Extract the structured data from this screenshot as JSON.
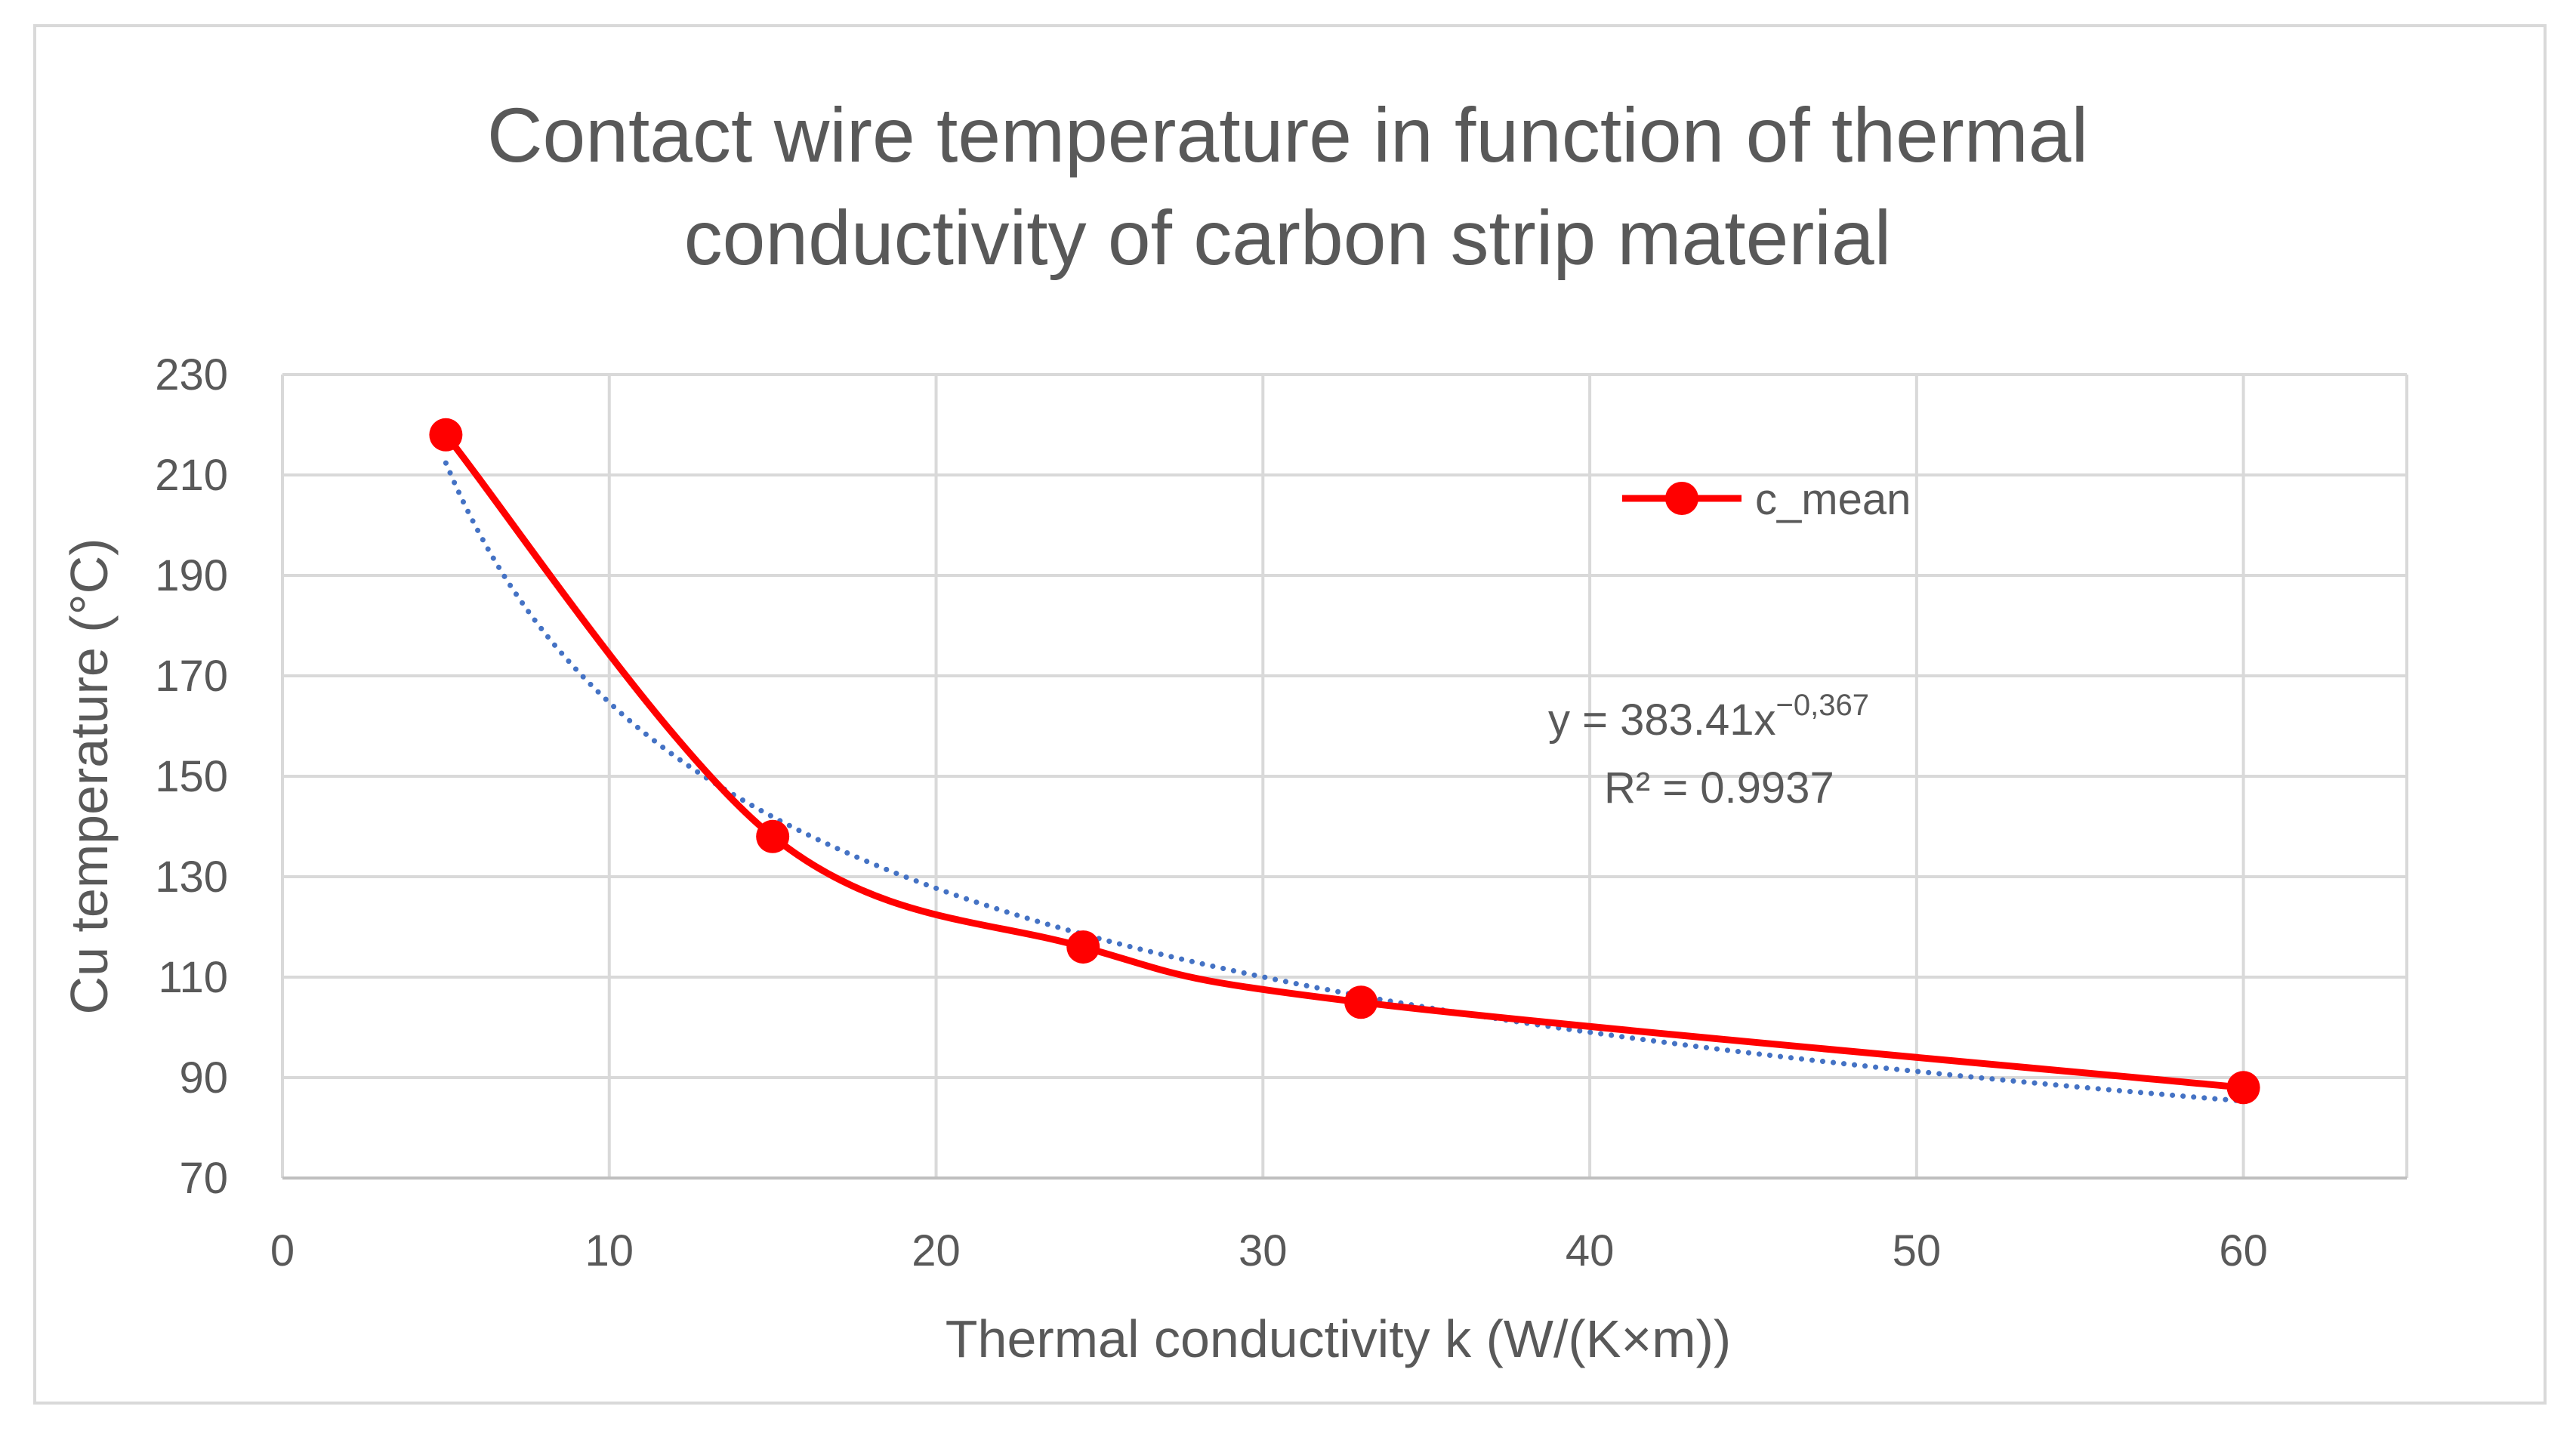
{
  "chart_data": {
    "type": "line",
    "title_lines": [
      "Contact wire temperature in function of thermal",
      "conductivity of carbon strip material"
    ],
    "xlabel": "Thermal conductivity k (W/(K×m))",
    "ylabel": "Cu temperature (°C)",
    "xlim": [
      0,
      65
    ],
    "ylim": [
      70,
      230
    ],
    "x_ticks": [
      0,
      10,
      20,
      30,
      40,
      50,
      60
    ],
    "y_ticks": [
      70,
      90,
      110,
      130,
      150,
      170,
      190,
      210,
      230
    ],
    "grid": true,
    "legend": {
      "position": "top-right",
      "entries": [
        "c_mean"
      ]
    },
    "series": [
      {
        "name": "c_mean",
        "color": "#ff0000",
        "marker": "circle",
        "smooth": true,
        "x": [
          5,
          15,
          24.5,
          33,
          60
        ],
        "y": [
          218,
          138,
          116,
          105,
          88
        ]
      }
    ],
    "trendline": {
      "type": "power",
      "color": "#4472c4",
      "style": "dotted",
      "coefficient": 383.41,
      "exponent": -0.367,
      "x_range": [
        5,
        60
      ],
      "equation_text": "y = 383.41x",
      "exponent_text": "−0,367",
      "r2_text": "R² = 0.9937"
    }
  }
}
